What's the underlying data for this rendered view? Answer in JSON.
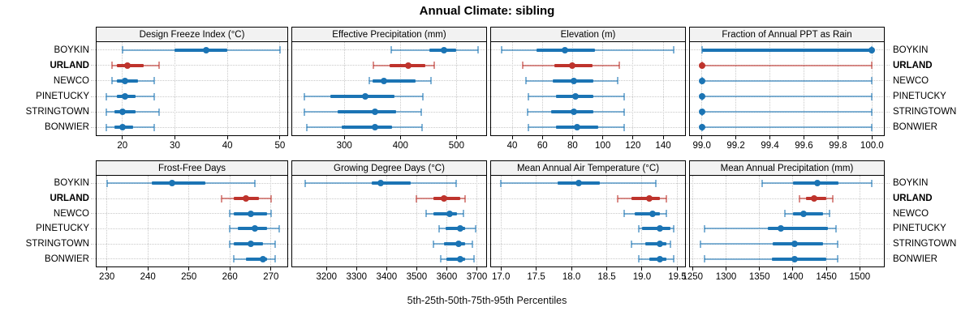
{
  "title": "Annual Climate: sibling",
  "caption": "5th-25th-50th-75th-95th Percentiles",
  "sites": [
    "BOYKIN",
    "URLAND",
    "NEWCO",
    "PINETUCKY",
    "STRINGTOWN",
    "BONWIER"
  ],
  "highlight_site": "URLAND",
  "colors": {
    "default": "#1b74b4",
    "highlight": "#be332c",
    "grid": "#c9c9c9",
    "header_bg": "#f2f2f2",
    "border": "#000000"
  },
  "chart_data": {
    "type": "dot-whisker-percentile-lattice",
    "percentile_levels": [
      "5th",
      "25th",
      "50th",
      "75th",
      "95th"
    ],
    "row_order_top_to_bottom": [
      "BOYKIN",
      "URLAND",
      "NEWCO",
      "PINETUCKY",
      "STRINGTOWN",
      "BONWIER"
    ],
    "grid": "2 rows x 4 columns of panels, shared site rows, dotted gridlines",
    "panels": [
      {
        "title": "Design Freeze Index (°C)",
        "grid_row": 0,
        "grid_col": 0,
        "xlim": [
          15.1,
          51.4
        ],
        "ticks": [
          20,
          30,
          40,
          50
        ],
        "tick_labels": [
          "20",
          "30",
          "40",
          "50"
        ],
        "series": [
          {
            "name": "BOYKIN",
            "p": [
              20,
              30,
              36,
              40,
              50
            ]
          },
          {
            "name": "URLAND",
            "p": [
              18,
              19,
              21,
              24,
              27
            ]
          },
          {
            "name": "NEWCO",
            "p": [
              18,
              19,
              20.5,
              23,
              26
            ]
          },
          {
            "name": "PINETUCKY",
            "p": [
              17,
              19,
              20.5,
              22.5,
              26
            ]
          },
          {
            "name": "STRINGTOWN",
            "p": [
              17,
              18.5,
              20,
              22.5,
              27
            ]
          },
          {
            "name": "BONWIER",
            "p": [
              17,
              18.5,
              20,
              22,
              26
            ]
          }
        ]
      },
      {
        "title": "Effective Precipitation (mm)",
        "grid_row": 0,
        "grid_col": 1,
        "xlim": [
          207,
          553
        ],
        "ticks": [
          300,
          400,
          500
        ],
        "tick_labels": [
          "300",
          "400",
          "500"
        ],
        "series": [
          {
            "name": "BOYKIN",
            "p": [
              383,
              452,
              478,
              500,
              539
            ]
          },
          {
            "name": "URLAND",
            "p": [
              352,
              380,
              414,
              444,
              460
            ]
          },
          {
            "name": "NEWCO",
            "p": [
              344,
              350,
              370,
              427,
              454
            ]
          },
          {
            "name": "PINETUCKY",
            "p": [
              228,
              275,
              338,
              390,
              440
            ]
          },
          {
            "name": "STRINGTOWN",
            "p": [
              228,
              288,
              354,
              393,
              437
            ]
          },
          {
            "name": "BONWIER",
            "p": [
              233,
              295,
              355,
              385,
              438
            ]
          }
        ]
      },
      {
        "title": "Elevation (m)",
        "grid_row": 0,
        "grid_col": 2,
        "xlim": [
          26,
          154.5
        ],
        "ticks": [
          40,
          60,
          80,
          100,
          120,
          140
        ],
        "tick_labels": [
          "40",
          "60",
          "80",
          "100",
          "120",
          "140"
        ],
        "series": [
          {
            "name": "BOYKIN",
            "p": [
              33,
              56,
              75,
              95,
              147
            ]
          },
          {
            "name": "URLAND",
            "p": [
              47,
              68,
              80,
              93,
              111
            ]
          },
          {
            "name": "NEWCO",
            "p": [
              49,
              67,
              81,
              94,
              110
            ]
          },
          {
            "name": "PINETUCKY",
            "p": [
              51,
              69,
              82,
              94,
              114
            ]
          },
          {
            "name": "STRINGTOWN",
            "p": [
              50,
              66,
              81,
              94,
              114
            ]
          },
          {
            "name": "BONWIER",
            "p": [
              51,
              69,
              83,
              97,
              114
            ]
          }
        ]
      },
      {
        "title": "Fraction of Annual PPT as Rain",
        "grid_row": 0,
        "grid_col": 3,
        "xlim": [
          98.93,
          100.07
        ],
        "ticks": [
          99.0,
          99.2,
          99.4,
          99.6,
          99.8,
          100.0
        ],
        "tick_labels": [
          "99.0",
          "99.2",
          "99.4",
          "99.6",
          "99.8",
          "100.0"
        ],
        "series": [
          {
            "name": "BOYKIN",
            "p": [
              99.0,
              99.0,
              100.0,
              100.0,
              100.0
            ]
          },
          {
            "name": "URLAND",
            "p": [
              99.0,
              99.0,
              99.0,
              99.0,
              100.0
            ]
          },
          {
            "name": "NEWCO",
            "p": [
              99.0,
              99.0,
              99.0,
              99.0,
              100.0
            ]
          },
          {
            "name": "PINETUCKY",
            "p": [
              99.0,
              99.0,
              99.0,
              99.0,
              100.0
            ]
          },
          {
            "name": "STRINGTOWN",
            "p": [
              99.0,
              99.0,
              99.0,
              99.0,
              100.0
            ]
          },
          {
            "name": "BONWIER",
            "p": [
              99.0,
              99.0,
              99.0,
              99.0,
              100.0
            ]
          }
        ]
      },
      {
        "title": "Frost-Free Days",
        "grid_row": 1,
        "grid_col": 0,
        "xlim": [
          227.5,
          274
        ],
        "ticks": [
          230,
          240,
          250,
          260,
          270
        ],
        "tick_labels": [
          "230",
          "240",
          "250",
          "260",
          "270"
        ],
        "series": [
          {
            "name": "BOYKIN",
            "p": [
              230,
              241,
              246,
              254,
              266
            ]
          },
          {
            "name": "URLAND",
            "p": [
              258,
              261,
              264,
              267,
              270
            ]
          },
          {
            "name": "NEWCO",
            "p": [
              260,
              261,
              265,
              269,
              270
            ]
          },
          {
            "name": "PINETUCKY",
            "p": [
              260,
              262,
              266,
              269,
              272
            ]
          },
          {
            "name": "STRINGTOWN",
            "p": [
              260,
              261,
              265,
              268,
              271
            ]
          },
          {
            "name": "BONWIER",
            "p": [
              261,
              264,
              268,
              269,
              271
            ]
          }
        ]
      },
      {
        "title": "Growing Degree Days (°C)",
        "grid_row": 1,
        "grid_col": 1,
        "xlim": [
          3086,
          3731
        ],
        "ticks": [
          3200,
          3300,
          3400,
          3500,
          3600,
          3700
        ],
        "tick_labels": [
          "3200",
          "3300",
          "3400",
          "3500",
          "3600",
          "3700"
        ],
        "series": [
          {
            "name": "BOYKIN",
            "p": [
              3130,
              3350,
              3380,
              3480,
              3630
            ]
          },
          {
            "name": "URLAND",
            "p": [
              3500,
              3555,
              3590,
              3645,
              3660
            ]
          },
          {
            "name": "NEWCO",
            "p": [
              3530,
              3555,
              3610,
              3635,
              3655
            ]
          },
          {
            "name": "PINETUCKY",
            "p": [
              3575,
              3595,
              3645,
              3660,
              3695
            ]
          },
          {
            "name": "STRINGTOWN",
            "p": [
              3555,
              3590,
              3640,
              3660,
              3685
            ]
          },
          {
            "name": "BONWIER",
            "p": [
              3580,
              3600,
              3645,
              3660,
              3690
            ]
          }
        ]
      },
      {
        "title": "Mean Annual Air Temperature (°C)",
        "grid_row": 1,
        "grid_col": 2,
        "xlim": [
          16.86,
          19.61
        ],
        "ticks": [
          17.0,
          17.5,
          18.0,
          18.5,
          19.0,
          19.5
        ],
        "tick_labels": [
          "17.0",
          "17.5",
          "18.0",
          "18.5",
          "19.0",
          "19.5"
        ],
        "series": [
          {
            "name": "BOYKIN",
            "p": [
              17.0,
              17.8,
              18.1,
              18.4,
              19.2
            ]
          },
          {
            "name": "URLAND",
            "p": [
              18.65,
              18.85,
              19.1,
              19.25,
              19.35
            ]
          },
          {
            "name": "NEWCO",
            "p": [
              18.75,
              18.9,
              19.15,
              19.25,
              19.35
            ]
          },
          {
            "name": "PINETUCKY",
            "p": [
              18.95,
              19.0,
              19.25,
              19.4,
              19.45
            ]
          },
          {
            "name": "STRINGTOWN",
            "p": [
              18.85,
              19.05,
              19.25,
              19.35,
              19.4
            ]
          },
          {
            "name": "BONWIER",
            "p": [
              18.95,
              19.1,
              19.25,
              19.35,
              19.45
            ]
          }
        ]
      },
      {
        "title": "Mean Annual Precipitation (mm)",
        "grid_row": 1,
        "grid_col": 3,
        "xlim": [
          1246,
          1536
        ],
        "ticks": [
          1250,
          1300,
          1350,
          1400,
          1450,
          1500
        ],
        "tick_labels": [
          "1250",
          "1300",
          "1350",
          "1400",
          "1450",
          "1500"
        ],
        "series": [
          {
            "name": "BOYKIN",
            "p": [
              1354,
              1400,
              1436,
              1468,
              1518
            ]
          },
          {
            "name": "URLAND",
            "p": [
              1410,
              1420,
              1432,
              1450,
              1459
            ]
          },
          {
            "name": "NEWCO",
            "p": [
              1388,
              1400,
              1416,
              1445,
              1455
            ]
          },
          {
            "name": "PINETUCKY",
            "p": [
              1268,
              1363,
              1382,
              1452,
              1465
            ]
          },
          {
            "name": "STRINGTOWN",
            "p": [
              1262,
              1370,
              1402,
              1445,
              1467
            ]
          },
          {
            "name": "BONWIER",
            "p": [
              1268,
              1368,
              1402,
              1450,
              1467
            ]
          }
        ]
      }
    ]
  }
}
